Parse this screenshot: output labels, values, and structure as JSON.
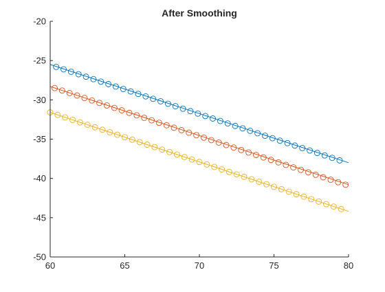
{
  "chart_data": {
    "type": "line",
    "title": "After Smoothing",
    "xlabel": "",
    "ylabel": "",
    "xlim": [
      60,
      80
    ],
    "ylim": [
      -50,
      -20
    ],
    "xticks": [
      "60",
      "65",
      "70",
      "75",
      "80"
    ],
    "yticks": [
      "-20",
      "-25",
      "-30",
      "-35",
      "-40",
      "-45",
      "-50"
    ],
    "grid": false,
    "legend": "none",
    "series": [
      {
        "color": "#0072BD",
        "marker": "circle",
        "line": {
          "x": [
            60,
            80
          ],
          "y": [
            -25.5,
            -38.0
          ]
        },
        "markers": {
          "x_start": 60.4,
          "x_end": 79.6,
          "x_step": 0.5,
          "y_start": -25.8,
          "y_end": -37.7
        }
      },
      {
        "color": "#D95319",
        "marker": "circle",
        "line": {
          "x": [
            60,
            80
          ],
          "y": [
            -28.3,
            -40.8
          ]
        },
        "markers": {
          "x_start": 60.3,
          "x_end": 80.0,
          "x_step": 0.5,
          "y_start": -28.5,
          "y_end": -40.8
        }
      },
      {
        "color": "#EDB120",
        "marker": "circle",
        "line": {
          "x": [
            60,
            80
          ],
          "y": [
            -31.6,
            -44.2
          ]
        },
        "markers": {
          "x_start": 60.0,
          "x_end": 79.5,
          "x_step": 0.5,
          "y_start": -31.6,
          "y_end": -43.9
        }
      }
    ]
  }
}
